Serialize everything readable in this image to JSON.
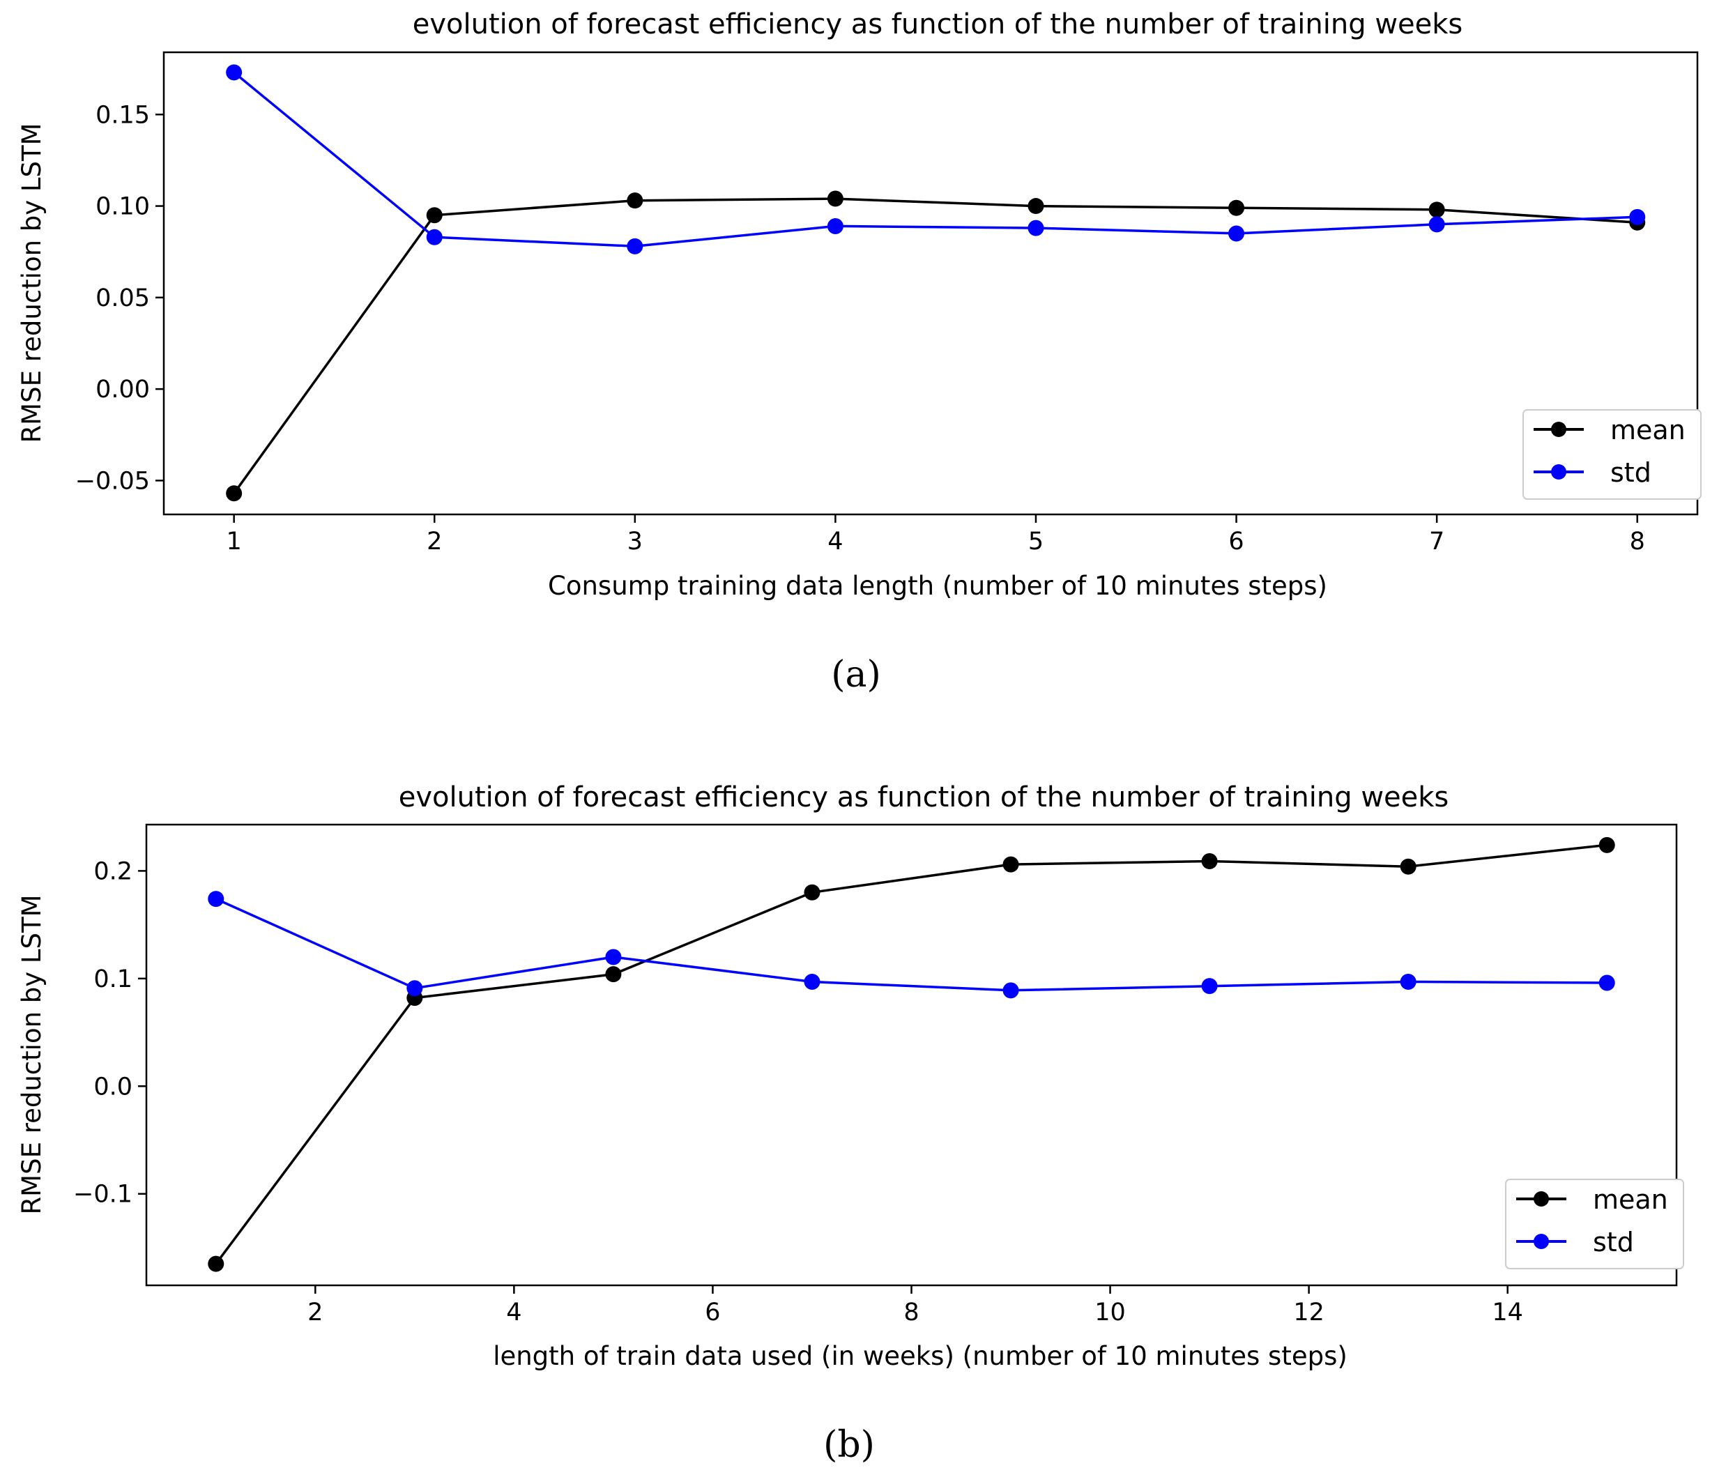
{
  "chart_data": [
    {
      "type": "line",
      "title": "evolution of forecast efficiency as function of the number of training weeks",
      "xlabel": "Consump training data length (number of 10 minutes steps)",
      "ylabel": "RMSE reduction by LSTM",
      "caption": "(a)",
      "x": [
        1,
        2,
        3,
        4,
        5,
        6,
        7,
        8
      ],
      "xlim": [
        0.65,
        8.3
      ],
      "ylim": [
        -0.0685,
        0.184
      ],
      "xticks": [
        1,
        2,
        3,
        4,
        5,
        6,
        7,
        8
      ],
      "xtick_labels": [
        "1",
        "2",
        "3",
        "4",
        "5",
        "6",
        "7",
        "8"
      ],
      "yticks": [
        -0.05,
        0.0,
        0.05,
        0.1,
        0.15
      ],
      "ytick_labels": [
        "−0.05",
        "0.00",
        "0.05",
        "0.10",
        "0.15"
      ],
      "legend_position": "lower-right",
      "series": [
        {
          "name": "mean",
          "color": "#000000",
          "values": [
            -0.057,
            0.095,
            0.103,
            0.104,
            0.1,
            0.099,
            0.098,
            0.091
          ]
        },
        {
          "name": "std",
          "color": "#0000ff",
          "values": [
            0.173,
            0.083,
            0.078,
            0.089,
            0.088,
            0.085,
            0.09,
            0.094
          ]
        }
      ]
    },
    {
      "type": "line",
      "title": "evolution of forecast efficiency as function of the number of training weeks",
      "xlabel": "length of train data used (in weeks) (number of 10 minutes steps)",
      "ylabel": "RMSE reduction by LSTM",
      "caption": "(b)",
      "x": [
        1,
        3,
        5,
        7,
        9,
        11,
        13,
        15
      ],
      "xlim": [
        0.3,
        15.7
      ],
      "ylim": [
        -0.185,
        0.243
      ],
      "xticks": [
        2,
        4,
        6,
        8,
        10,
        12,
        14
      ],
      "xtick_labels": [
        "2",
        "4",
        "6",
        "8",
        "10",
        "12",
        "14"
      ],
      "yticks": [
        -0.1,
        0.0,
        0.1,
        0.2
      ],
      "ytick_labels": [
        "−0.1",
        "0.0",
        "0.1",
        "0.2"
      ],
      "legend_position": "lower-right",
      "series": [
        {
          "name": "mean",
          "color": "#000000",
          "values": [
            -0.165,
            0.082,
            0.104,
            0.18,
            0.206,
            0.209,
            0.204,
            0.224
          ]
        },
        {
          "name": "std",
          "color": "#0000ff",
          "values": [
            0.174,
            0.091,
            0.12,
            0.097,
            0.089,
            0.093,
            0.097,
            0.096
          ]
        }
      ]
    }
  ]
}
